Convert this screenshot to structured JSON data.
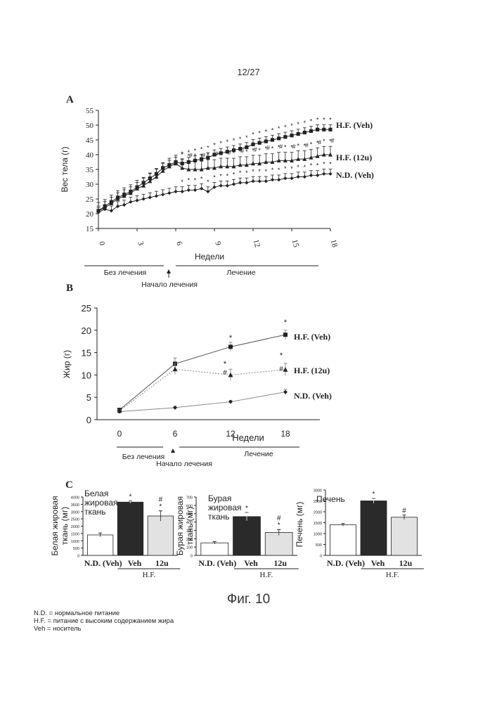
{
  "page_number": "12/27",
  "figure_caption": "Фиг. 10",
  "footnotes": [
    "N.D. = нормальное питание",
    "H.F. = питание с высоким содержанием жира",
    "Veh = носитель"
  ],
  "colors": {
    "ink": "#222222",
    "light": "#9a9a9a",
    "dark_bar": "#2a2a2a",
    "dotted_bar": "#e2e2e2"
  },
  "chart_data": [
    {
      "panel": "A",
      "type": "line",
      "ylabel": "Вес тела (г)",
      "xlabel": "Недели",
      "ylim": [
        15,
        55
      ],
      "yticks": [
        15,
        20,
        25,
        30,
        35,
        40,
        45,
        50,
        55
      ],
      "xlim": [
        0,
        18
      ],
      "xticks": [
        "0",
        "3",
        "6",
        "9",
        "12",
        "15",
        "18"
      ],
      "x": [
        0,
        0.5,
        1,
        1.5,
        2,
        2.5,
        3,
        3.5,
        4,
        4.5,
        5,
        5.5,
        6,
        6.5,
        7,
        7.5,
        8,
        8.5,
        9,
        9.5,
        10,
        10.5,
        11,
        11.5,
        12,
        12.5,
        13,
        13.5,
        14,
        14.5,
        15,
        15.5,
        16,
        16.5,
        17,
        17.5,
        18
      ],
      "series": [
        {
          "name": "H.F. (Veh)",
          "marker": "square",
          "values": [
            21,
            22.5,
            24,
            25.5,
            26.5,
            27.5,
            29,
            30.5,
            32,
            33.5,
            35.5,
            36.5,
            37.5,
            37,
            37.5,
            38,
            38.5,
            39,
            40,
            40.5,
            41,
            41.5,
            42,
            42.5,
            43.5,
            44,
            44.5,
            45,
            45.5,
            46,
            46.5,
            47,
            47.5,
            48,
            48.5,
            48.5,
            48.5
          ]
        },
        {
          "name": "H.F. (12u)",
          "marker": "triangle",
          "values": [
            21,
            22,
            23.5,
            25,
            26,
            27,
            28.5,
            29.5,
            31,
            32.5,
            34.5,
            36,
            37,
            35.5,
            35,
            35,
            35,
            35.5,
            35.5,
            36,
            36,
            36,
            36.5,
            36.5,
            37,
            37,
            37.5,
            37.5,
            38,
            38,
            38,
            38.5,
            38.5,
            39,
            39.5,
            40,
            40
          ]
        },
        {
          "name": "N.D. (Veh)",
          "marker": "diamond",
          "values": [
            20.5,
            21.5,
            21,
            22.5,
            23,
            24,
            24.5,
            25,
            25.5,
            26,
            26.5,
            27,
            27.5,
            27.5,
            28,
            28,
            28.5,
            27.5,
            29,
            29.5,
            29.5,
            30,
            30.5,
            30.5,
            31,
            31,
            31,
            31.5,
            31.5,
            32,
            32,
            32.5,
            32.5,
            33,
            33,
            33.5,
            33.5
          ]
        }
      ],
      "sig_star": "*",
      "sig_hash": "#",
      "annotations": {
        "no_treatment": "Без лечения",
        "treatment": "Лечение",
        "treatment_start": "Начало лечения"
      }
    },
    {
      "panel": "B",
      "type": "line",
      "ylabel": "Жир (г)",
      "xlabel": "Недели",
      "ylim": [
        0,
        25
      ],
      "yticks": [
        0,
        5,
        10,
        15,
        20,
        25
      ],
      "x": [
        0,
        6,
        12,
        18
      ],
      "xticks": [
        "0",
        "6",
        "12",
        "18"
      ],
      "series": [
        {
          "name": "H.F. (Veh)",
          "marker": "square",
          "values": [
            2.2,
            12.5,
            16.3,
            19.0
          ]
        },
        {
          "name": "H.F. (12u)",
          "marker": "triangle",
          "values": [
            2.0,
            11.3,
            10.0,
            11.2
          ]
        },
        {
          "name": "N.D. (Veh)",
          "marker": "diamond",
          "values": [
            1.8,
            2.7,
            4.0,
            6.2
          ]
        }
      ],
      "annotations": {
        "no_treatment": "Без лечения",
        "treatment": "Лечение",
        "treatment_start": "Начало лечения"
      }
    },
    {
      "panel": "C",
      "type": "bar",
      "group_label": "H.F.",
      "charts": [
        {
          "title_lines": [
            "Белая",
            "жировая",
            "ткань"
          ],
          "ylabel_lines": [
            "Белая жировая",
            "ткань (мг)"
          ],
          "ylim": [
            0,
            4000
          ],
          "yticks": [
            "0",
            "500",
            "1000",
            "1500",
            "2000",
            "2500",
            "3000",
            "3500",
            "4000"
          ],
          "categories": [
            "N.D. (Veh)",
            "Veh",
            "12u"
          ],
          "values": [
            1400,
            3650,
            2700
          ],
          "errors": [
            130,
            80,
            350
          ],
          "sig": [
            "",
            "*",
            "#*"
          ]
        },
        {
          "title_lines": [
            "Бурая",
            "жировая",
            "ткань"
          ],
          "ylabel_lines": [
            "Бурая жировая",
            "ткань (мг)"
          ],
          "ylim": [
            0,
            700
          ],
          "yticks": [
            "0",
            "100",
            "200",
            "300",
            "400",
            "500",
            "600",
            "700"
          ],
          "categories": [
            "N.D. (Veh)",
            "Veh",
            "12u"
          ],
          "values": [
            150,
            465,
            275
          ],
          "errors": [
            15,
            50,
            35
          ],
          "sig": [
            "",
            "*",
            "#*"
          ]
        },
        {
          "title_lines": [
            "Печень"
          ],
          "ylabel_lines": [
            "Печень (мг)"
          ],
          "ylim": [
            0,
            3000
          ],
          "yticks": [
            "0",
            "500",
            "1000",
            "1500",
            "2000",
            "2500",
            "3000"
          ],
          "categories": [
            "N.D. (Veh)",
            "Veh",
            "12u"
          ],
          "values": [
            1400,
            2500,
            1750
          ],
          "errors": [
            60,
            110,
            100
          ],
          "sig": [
            "",
            "*",
            "#"
          ]
        }
      ]
    }
  ]
}
